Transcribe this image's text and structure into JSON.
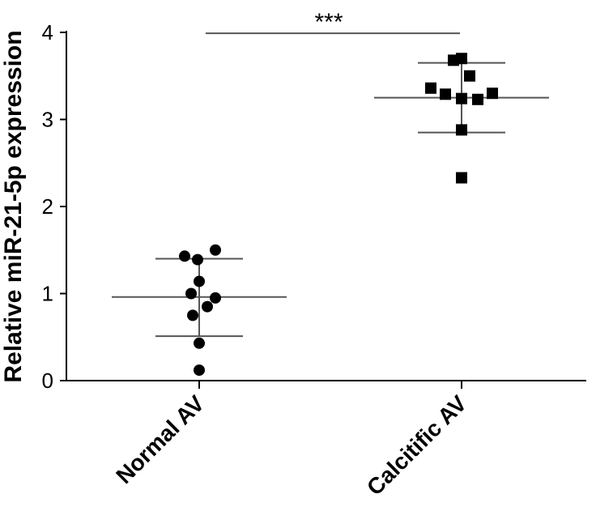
{
  "chart_data": {
    "type": "scatter",
    "title": "",
    "xlabel": "",
    "ylabel": "Relative miR-21-5p expression",
    "ylim": [
      0,
      4
    ],
    "yticks": [
      0,
      1,
      2,
      3,
      4
    ],
    "categories": [
      "Normal AV",
      "Calcitific AV"
    ],
    "series": [
      {
        "name": "Normal AV",
        "marker": "circle",
        "values": [
          1.5,
          1.43,
          1.39,
          1.14,
          1.0,
          0.95,
          0.85,
          0.75,
          0.43,
          0.12
        ],
        "jitter": [
          0.1,
          -0.09,
          -0.01,
          0.0,
          -0.05,
          0.1,
          0.05,
          -0.04,
          0.0,
          0.0
        ],
        "mean": 0.96,
        "sd_low": 0.51,
        "sd_high": 1.4
      },
      {
        "name": "Calcitific AV",
        "marker": "square",
        "values": [
          3.7,
          3.68,
          3.5,
          3.36,
          3.3,
          3.29,
          3.24,
          3.23,
          2.88,
          2.33
        ],
        "jitter": [
          0.0,
          -0.05,
          0.05,
          -0.19,
          0.19,
          -0.1,
          0.0,
          0.1,
          0.0,
          0.0
        ],
        "mean": 3.25,
        "sd_low": 2.85,
        "sd_high": 3.65
      }
    ],
    "annotations": [
      {
        "text": "***",
        "from": "Normal AV",
        "to": "Calcitific AV",
        "y": 3.99
      }
    ]
  }
}
